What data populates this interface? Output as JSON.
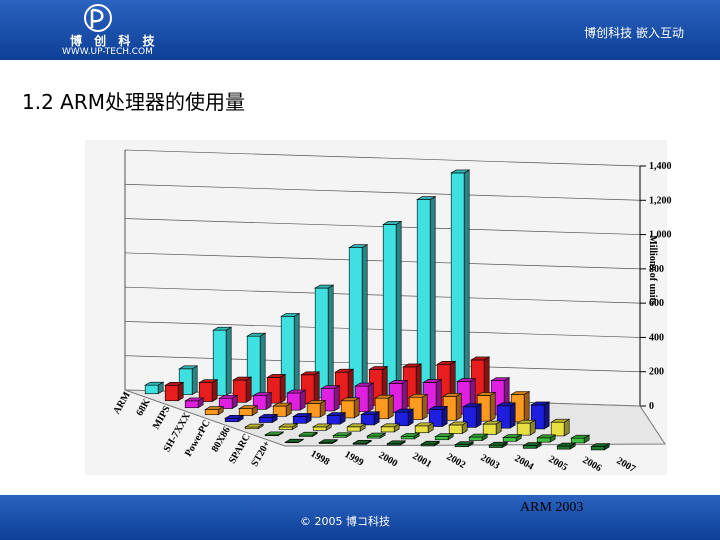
{
  "header": {
    "logo_text": "博 创 科 技",
    "logo_url": "WWW.UP-TECH.COM",
    "right_text": "博创科技  嵌入互动"
  },
  "title": "1.2 ARM处理器的使用量",
  "chart_data": {
    "type": "bar3d",
    "y_label": "Millions of units",
    "categories": [
      "1998",
      "1999",
      "2000",
      "2001",
      "2002",
      "2003",
      "2004",
      "2005",
      "2006",
      "2007"
    ],
    "series": [
      {
        "name": "ARM",
        "color": "#3fe0e0",
        "values": [
          50,
          150,
          380,
          350,
          470,
          640,
          880,
          1020,
          1170,
          1330
        ]
      },
      {
        "name": "68K",
        "color": "#e81e1e",
        "values": [
          90,
          110,
          130,
          150,
          170,
          190,
          210,
          230,
          250,
          280
        ]
      },
      {
        "name": "MIPS",
        "color": "#e020e0",
        "values": [
          40,
          60,
          80,
          100,
          130,
          150,
          170,
          180,
          190,
          200
        ]
      },
      {
        "name": "SH-7XXX",
        "color": "#ff9a20",
        "values": [
          30,
          40,
          60,
          80,
          100,
          120,
          130,
          140,
          150,
          160
        ]
      },
      {
        "name": "PowerPC",
        "color": "#1e1ee0",
        "values": [
          20,
          30,
          40,
          50,
          60,
          80,
          100,
          120,
          130,
          140
        ]
      },
      {
        "name": "80X86",
        "color": "#e8e040",
        "values": [
          10,
          15,
          20,
          25,
          30,
          40,
          50,
          60,
          70,
          80
        ]
      },
      {
        "name": "SPARC",
        "color": "#40c040",
        "values": [
          5,
          8,
          10,
          12,
          15,
          18,
          20,
          22,
          25,
          28
        ]
      },
      {
        "name": "ST20+",
        "color": "#1e7a2e",
        "values": [
          3,
          5,
          6,
          8,
          10,
          12,
          14,
          16,
          18,
          20
        ]
      }
    ],
    "ylim": [
      0,
      1400
    ],
    "yticks": [
      0,
      200,
      400,
      600,
      800,
      {
        "value": 1000,
        "label": "1,000"
      },
      {
        "value": 1200,
        "label": "1,200"
      },
      {
        "value": 1400,
        "label": "1,400"
      }
    ],
    "grid": true
  },
  "footer": {
    "left": "© 2005 博コ科技",
    "right": "ARM 2003"
  }
}
